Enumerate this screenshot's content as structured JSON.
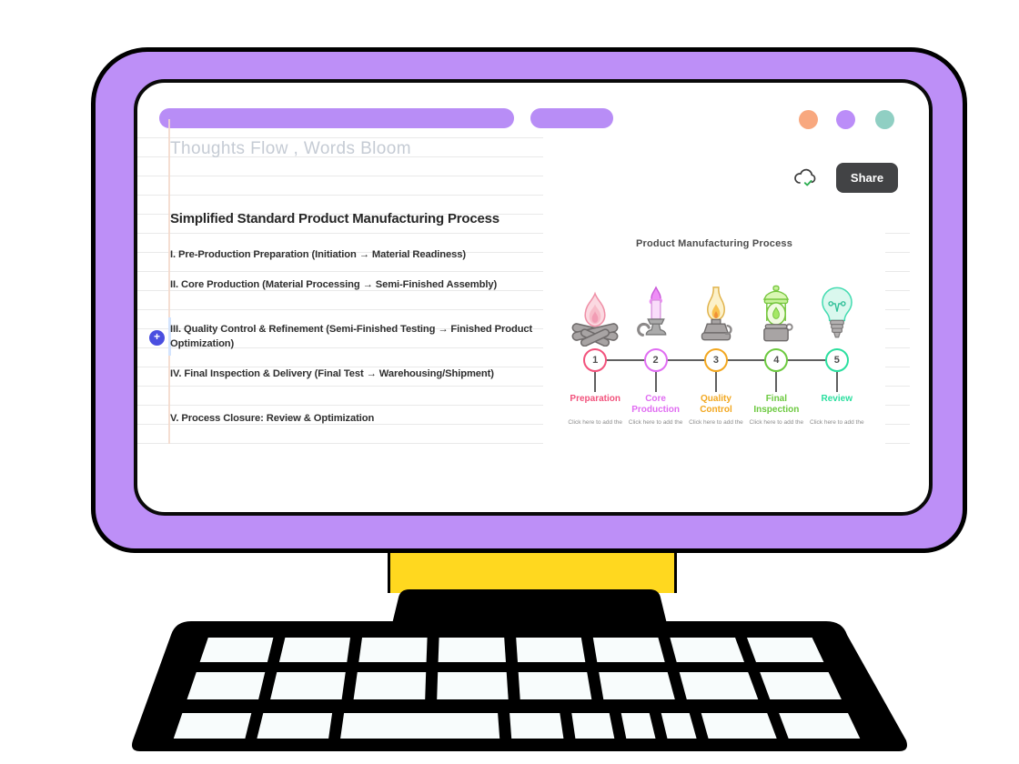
{
  "device": {
    "type": "desktop-computer-illustration",
    "bezel_color": "#bd8ff7",
    "stand_color": "#ffd81f",
    "keyboard_color": "#000000",
    "key_color": "#f8fcfc"
  },
  "window": {
    "toolbar_pill_color": "#b88df6",
    "traffic_lights": [
      "#f8a87f",
      "#bb8df8",
      "#90cfc3"
    ]
  },
  "toolbar": {
    "share_label": "Share",
    "sync_status_icon": "cloud-sync-done",
    "sync_check_color": "#2eae52"
  },
  "document": {
    "title_placeholder": "Thoughts Flow , Words Bloom",
    "heading": "Simplified Standard Product Manufacturing Process",
    "add_button_glyph": "+",
    "items": [
      "I. Pre-Production Preparation (Initiation → Material Readiness)",
      "II. Core Production (Material Processing → Semi-Finished Assembly)",
      "III. Quality Control & Refinement (Semi-Finished Testing → Finished Product Optimization)",
      "IV. Final Inspection & Delivery (Final Test → Warehousing/Shipment)",
      "V. Process Closure: Review & Optimization"
    ]
  },
  "diagram": {
    "title": "Product Manufacturing Process",
    "steps": [
      {
        "num": "1",
        "label": "Preparation",
        "caption": "Click here to add the",
        "color": "#f2527c",
        "icon": "campfire-icon"
      },
      {
        "num": "2",
        "label": "Core Production",
        "caption": "Click here to add the",
        "color": "#e06df2",
        "icon": "candle-icon"
      },
      {
        "num": "3",
        "label": "Quality Control",
        "caption": "Click here to add the",
        "color": "#f2a71f",
        "icon": "oil-lamp-icon"
      },
      {
        "num": "4",
        "label": "Final Inspection",
        "caption": "Click here to add the",
        "color": "#6cc93f",
        "icon": "lantern-icon"
      },
      {
        "num": "5",
        "label": "Review",
        "caption": "Click here to add the",
        "color": "#2bdf9f",
        "icon": "lightbulb-icon"
      }
    ]
  }
}
